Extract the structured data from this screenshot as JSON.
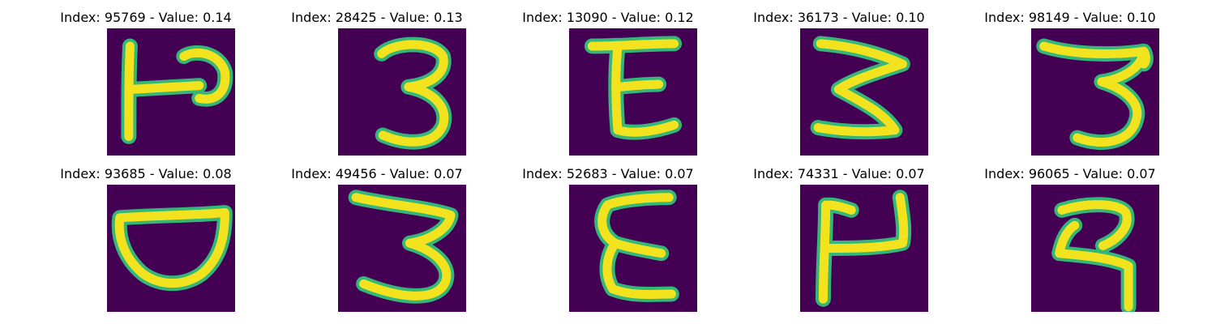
{
  "figure": {
    "background_color": "#440154",
    "stroke_color": "#f2e31e",
    "edge_color": "#35b779",
    "panels": [
      {
        "title": "Index: 95769 - Value: 0.14",
        "glyph": "ㄗ"
      },
      {
        "title": "Index: 28425 - Value: 0.13",
        "glyph": "3"
      },
      {
        "title": "Index: 13090 - Value: 0.12",
        "glyph": "E"
      },
      {
        "title": "Index: 36173 - Value: 0.10",
        "glyph": "3"
      },
      {
        "title": "Index: 98149 - Value: 0.10",
        "glyph": "3"
      },
      {
        "title": "Index: 93685 - Value: 0.08",
        "glyph": "D"
      },
      {
        "title": "Index: 49456 - Value: 0.07",
        "glyph": "3"
      },
      {
        "title": "Index: 52683 - Value: 0.07",
        "glyph": "E"
      },
      {
        "title": "Index: 74331 - Value: 0.07",
        "glyph": "ㄐ"
      },
      {
        "title": "Index: 96065 - Value: 0.07",
        "glyph": "ㄹ"
      }
    ]
  }
}
